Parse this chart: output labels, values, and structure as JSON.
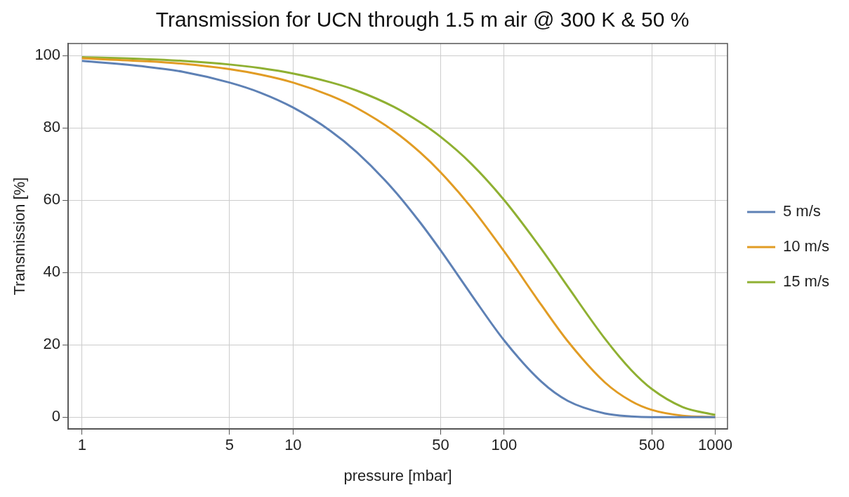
{
  "chart_data": {
    "type": "line",
    "title": "Transmission for UCN through 1.5 m air @ 300 K & 50 %",
    "xlabel": "pressure [mbar]",
    "ylabel": "Transmission [%]",
    "x": [
      1,
      2,
      3,
      5,
      7,
      10,
      15,
      20,
      30,
      40,
      50,
      70,
      100,
      150,
      200,
      300,
      400,
      500,
      700,
      1000
    ],
    "series": [
      {
        "name": "5 m/s",
        "color": "#5e81b5",
        "values": [
          98.5,
          96.9,
          95.5,
          92.5,
          89.7,
          85.6,
          79.2,
          73.3,
          62.8,
          53.8,
          46.1,
          33.8,
          21.2,
          9.8,
          4.5,
          1.0,
          0.2,
          0.0,
          0.0,
          0.0
        ]
      },
      {
        "name": "10 m/s",
        "color": "#e19c24",
        "values": [
          99.2,
          98.4,
          97.7,
          96.2,
          94.7,
          92.5,
          88.9,
          85.5,
          79.1,
          73.2,
          67.7,
          57.9,
          45.8,
          31.0,
          21.0,
          9.6,
          4.4,
          2.0,
          0.4,
          0.0
        ]
      },
      {
        "name": "15 m/s",
        "color": "#8fb032",
        "values": [
          99.5,
          99.0,
          98.5,
          97.5,
          96.5,
          95.0,
          92.6,
          90.3,
          85.8,
          81.5,
          77.5,
          70.0,
          60.0,
          46.5,
          36.1,
          21.7,
          13.0,
          7.8,
          2.8,
          0.6
        ]
      }
    ],
    "log": "x",
    "xlim": [
      0.86,
      1143
    ],
    "xticks": [
      1,
      5,
      10,
      50,
      100,
      500,
      1000
    ],
    "ylim": [
      -3.3,
      103.3
    ],
    "yticks": [
      0,
      20,
      40,
      60,
      80,
      100
    ],
    "grid": true,
    "legend": "right",
    "marker": "none",
    "line_style": "solid"
  }
}
